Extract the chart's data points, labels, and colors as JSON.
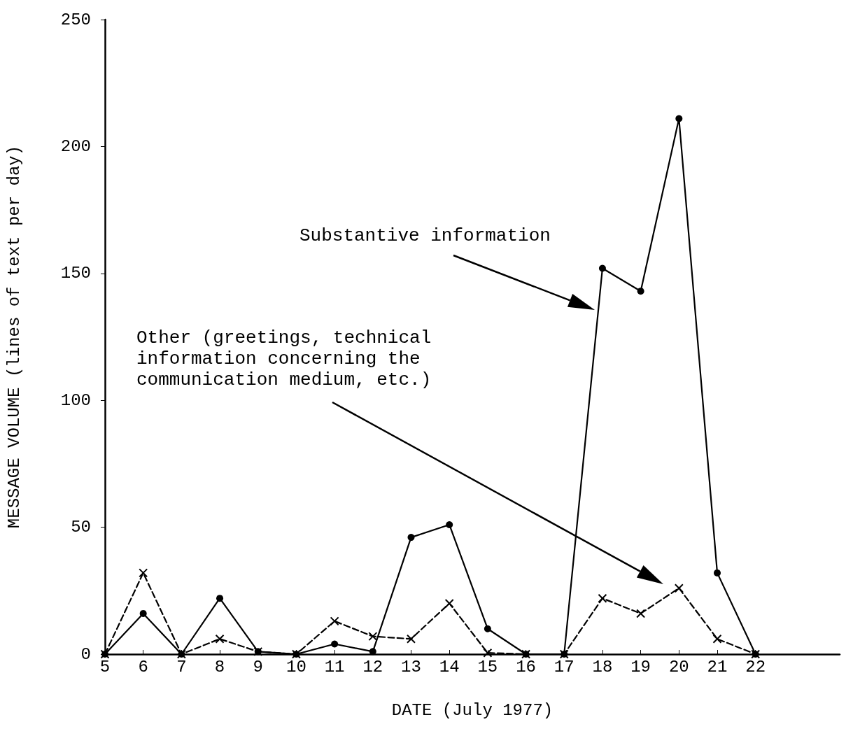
{
  "chart_data": {
    "type": "line",
    "xlabel": "DATE (July 1977)",
    "ylabel": "MESSAGE VOLUME (lines of text per day)",
    "x": [
      5,
      6,
      7,
      8,
      9,
      10,
      11,
      12,
      13,
      14,
      15,
      16,
      17,
      18,
      19,
      20,
      21,
      22
    ],
    "series": [
      {
        "color": "#000000",
        "marker": "circle",
        "line_style": "solid",
        "values": [
          0,
          16,
          0,
          22,
          1,
          0,
          4,
          1,
          46,
          51,
          10,
          0,
          0,
          152,
          143,
          211,
          32,
          0
        ]
      },
      {
        "color": "#000000",
        "marker": "cross",
        "line_style": "dashed",
        "values": [
          0,
          32,
          0,
          6,
          1,
          0,
          13,
          7,
          6,
          20,
          0.5,
          0,
          0,
          22,
          16,
          26,
          6,
          0
        ]
      }
    ],
    "annotations": [
      "Substantive information",
      "Other (greetings, technical\ninformation concerning the\ncommunication medium, etc.)"
    ],
    "xlim": [
      5,
      24.2
    ],
    "xticks": [
      5,
      6,
      7,
      8,
      9,
      10,
      11,
      12,
      13,
      14,
      15,
      16,
      17,
      18,
      19,
      20,
      21,
      22
    ],
    "ylim": [
      0,
      250
    ],
    "yticks": [
      0,
      50,
      100,
      150,
      200,
      250
    ],
    "grid": false
  }
}
